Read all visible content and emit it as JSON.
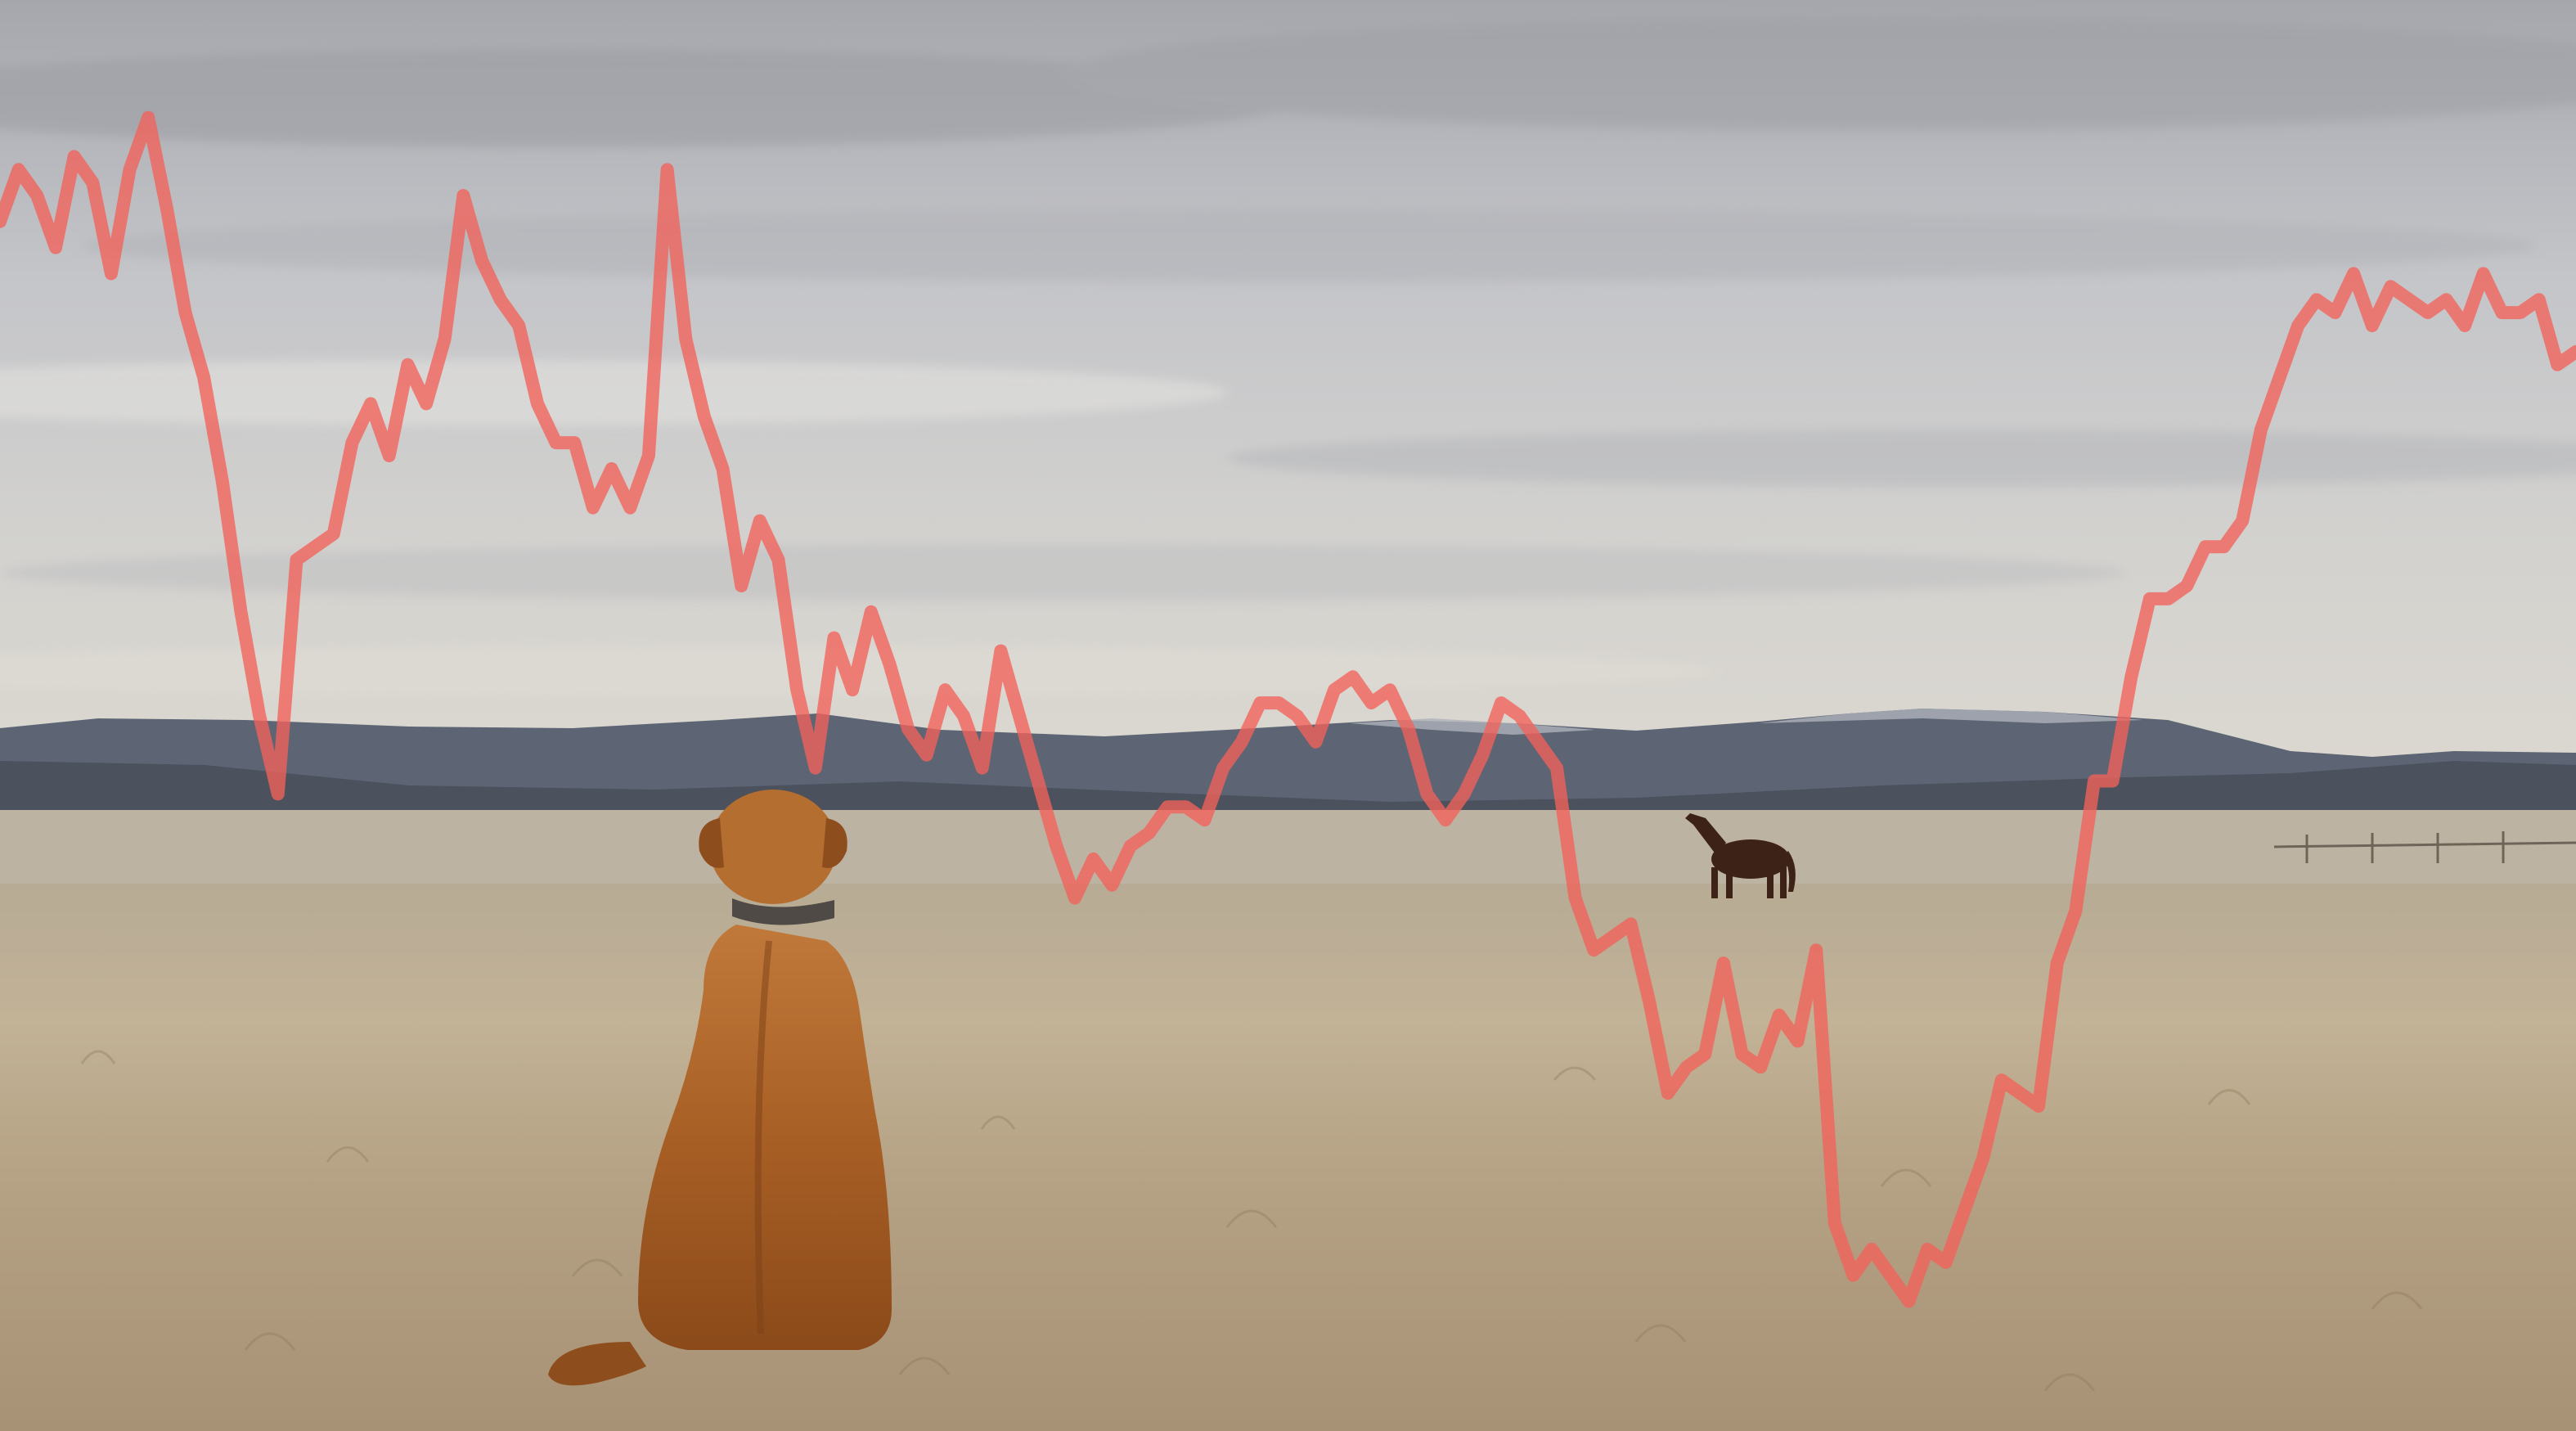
{
  "scene": {
    "description_tags": [
      "dog-sitting",
      "horse",
      "grassland",
      "mountains",
      "overcast-sky"
    ],
    "colors": {
      "sky_top": "#a9aab0",
      "sky_mid": "#cfd0d2",
      "sky_horizon": "#d9d6d0",
      "mountains_far": "#5c6473",
      "mountains_near": "#4a505c",
      "snow": "#b9bcc4",
      "ground_far": "#b9ab90",
      "ground_near": "#a8967a",
      "dog": "#b46a2e",
      "dog_dark": "#7e4318",
      "horse": "#3e2418",
      "line": "#f0645c"
    }
  },
  "chart_data": {
    "type": "line",
    "title": "",
    "xlabel": "",
    "ylabel": "",
    "grid": false,
    "legend": "none",
    "ylim": [
      0,
      100
    ],
    "x_count": 140,
    "values": [
      88,
      92,
      90,
      86,
      93,
      91,
      84,
      92,
      96,
      89,
      81,
      76,
      68,
      58,
      50,
      44,
      62,
      63,
      64,
      71,
      74,
      70,
      77,
      74,
      79,
      90,
      85,
      82,
      80,
      74,
      71,
      71,
      66,
      69,
      66,
      70,
      92,
      79,
      73,
      69,
      60,
      65,
      62,
      52,
      46,
      56,
      52,
      58,
      54,
      49,
      47,
      52,
      50,
      46,
      55,
      50,
      45,
      40,
      36,
      39,
      37,
      40,
      41,
      43,
      43,
      42,
      46,
      48,
      51,
      51,
      50,
      48,
      52,
      53,
      51,
      52,
      49,
      44,
      42,
      44,
      47,
      51,
      50,
      48,
      46,
      36,
      32,
      33,
      34,
      28,
      21,
      23,
      24,
      31,
      24,
      23,
      27,
      25,
      32,
      11,
      7,
      9,
      7,
      5,
      9,
      8,
      12,
      16,
      22,
      21,
      20,
      31,
      35,
      45,
      45,
      53,
      59,
      59,
      60,
      63,
      63,
      65,
      72,
      76,
      80,
      82,
      81,
      84,
      80,
      83,
      82,
      81,
      82,
      80,
      84,
      81,
      81,
      82,
      77,
      78
    ]
  }
}
